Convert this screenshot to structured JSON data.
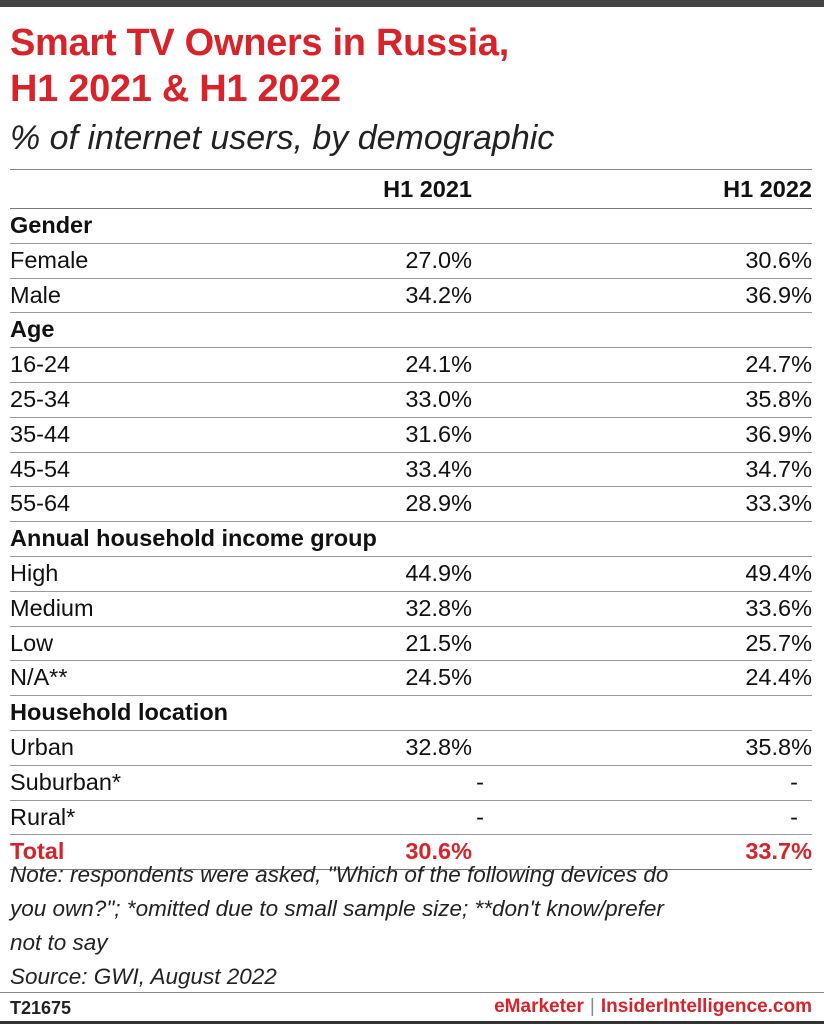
{
  "title_line1": "Smart TV Owners in Russia,",
  "title_line2": "H1 2021 & H1 2022",
  "subtitle": "% of internet users, by demographic",
  "columns": [
    "H1 2021",
    "H1 2022"
  ],
  "chart_data": {
    "type": "table",
    "title": "Smart TV Owners in Russia, H1 2021 & H1 2022",
    "subtitle": "% of internet users, by demographic",
    "columns": [
      "H1 2021",
      "H1 2022"
    ],
    "rows": [
      {
        "label": "Gender",
        "section": true
      },
      {
        "label": "Female",
        "values": [
          "27.0%",
          "30.6%"
        ]
      },
      {
        "label": "Male",
        "values": [
          "34.2%",
          "36.9%"
        ]
      },
      {
        "label": "Age",
        "section": true
      },
      {
        "label": "16-24",
        "values": [
          "24.1%",
          "24.7%"
        ]
      },
      {
        "label": "25-34",
        "values": [
          "33.0%",
          "35.8%"
        ]
      },
      {
        "label": "35-44",
        "values": [
          "31.6%",
          "36.9%"
        ]
      },
      {
        "label": "45-54",
        "values": [
          "33.4%",
          "34.7%"
        ]
      },
      {
        "label": "55-64",
        "values": [
          "28.9%",
          "33.3%"
        ]
      },
      {
        "label": "Annual household income group",
        "section": true
      },
      {
        "label": "High",
        "values": [
          "44.9%",
          "49.4%"
        ]
      },
      {
        "label": "Medium",
        "values": [
          "32.8%",
          "33.6%"
        ]
      },
      {
        "label": "Low",
        "values": [
          "21.5%",
          "25.7%"
        ]
      },
      {
        "label": "N/A**",
        "values": [
          "24.5%",
          "24.4%"
        ]
      },
      {
        "label": "Household location",
        "section": true
      },
      {
        "label": "Urban",
        "values": [
          "32.8%",
          "35.8%"
        ]
      },
      {
        "label": "Suburban*",
        "values": [
          "-",
          "-"
        ]
      },
      {
        "label": "Rural*",
        "values": [
          "-",
          "-"
        ]
      },
      {
        "label": "Total",
        "values": [
          "30.6%",
          "33.7%"
        ],
        "total": true
      }
    ]
  },
  "note_line1": "Note: respondents were asked, \"Which of the following devices do",
  "note_line2": "you own?\"; *omitted due to small sample size; **don't know/prefer",
  "note_line3": "not to say",
  "source": "Source: GWI, August 2022",
  "footer": {
    "code": "T21675",
    "brand1": "eMarketer",
    "separator": "|",
    "brand2": "InsiderIntelligence.com"
  },
  "colors": {
    "accent": "#d8232a",
    "text": "#111111"
  }
}
